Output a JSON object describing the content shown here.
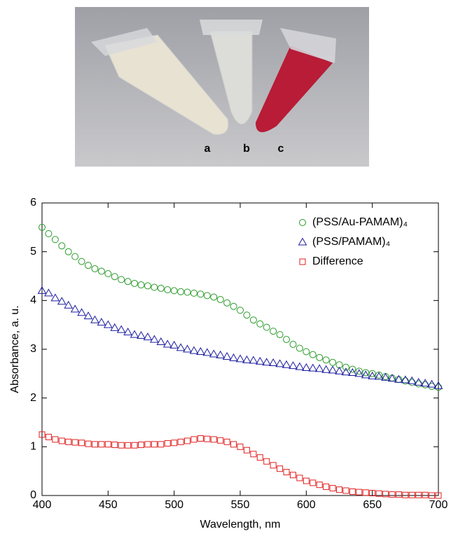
{
  "photo": {
    "labels": [
      "a",
      "b",
      "c"
    ]
  },
  "chart_data": {
    "type": "scatter",
    "x_label": "Wavelength, nm",
    "y_label": "Absorbance, a. u.",
    "xlim": [
      400,
      700
    ],
    "ylim": [
      0,
      6
    ],
    "xticks": [
      400,
      450,
      500,
      550,
      600,
      650,
      700
    ],
    "yticks": [
      0,
      1,
      2,
      3,
      4,
      5,
      6
    ],
    "legend": "upper right",
    "x": [
      400,
      405,
      410,
      415,
      420,
      425,
      430,
      435,
      440,
      445,
      450,
      455,
      460,
      465,
      470,
      475,
      480,
      485,
      490,
      495,
      500,
      505,
      510,
      515,
      520,
      525,
      530,
      535,
      540,
      545,
      550,
      555,
      560,
      565,
      570,
      575,
      580,
      585,
      590,
      595,
      600,
      605,
      610,
      615,
      620,
      625,
      630,
      635,
      640,
      645,
      650,
      655,
      660,
      665,
      670,
      675,
      680,
      685,
      690,
      695,
      700
    ],
    "series": [
      {
        "name": "(PSS/Au-PAMAM)₄",
        "color": "#2a9a2a",
        "marker": "circle",
        "values": [
          5.5,
          5.37,
          5.25,
          5.12,
          5.0,
          4.9,
          4.8,
          4.72,
          4.65,
          4.6,
          4.55,
          4.49,
          4.43,
          4.39,
          4.35,
          4.32,
          4.3,
          4.27,
          4.25,
          4.22,
          4.2,
          4.18,
          4.17,
          4.15,
          4.13,
          4.1,
          4.07,
          4.02,
          3.95,
          3.88,
          3.8,
          3.7,
          3.6,
          3.52,
          3.45,
          3.37,
          3.3,
          3.2,
          3.1,
          3.02,
          2.95,
          2.89,
          2.83,
          2.78,
          2.73,
          2.68,
          2.63,
          2.59,
          2.55,
          2.52,
          2.5,
          2.47,
          2.44,
          2.41,
          2.38,
          2.35,
          2.32,
          2.29,
          2.27,
          2.24,
          2.22
        ]
      },
      {
        "name": "(PSS/PAMAM)₄",
        "color": "#1c1ca0",
        "marker": "triangle",
        "values": [
          4.2,
          4.15,
          4.05,
          3.98,
          3.9,
          3.82,
          3.75,
          3.68,
          3.6,
          3.55,
          3.5,
          3.44,
          3.4,
          3.35,
          3.3,
          3.28,
          3.25,
          3.2,
          3.15,
          3.1,
          3.08,
          3.03,
          3.0,
          2.97,
          2.95,
          2.93,
          2.9,
          2.88,
          2.85,
          2.82,
          2.8,
          2.78,
          2.77,
          2.75,
          2.73,
          2.72,
          2.7,
          2.68,
          2.66,
          2.64,
          2.62,
          2.61,
          2.6,
          2.58,
          2.57,
          2.55,
          2.53,
          2.52,
          2.5,
          2.47,
          2.45,
          2.44,
          2.42,
          2.4,
          2.38,
          2.37,
          2.35,
          2.32,
          2.3,
          2.28,
          2.25
        ]
      },
      {
        "name": "Difference",
        "color": "#e02020",
        "marker": "square",
        "values": [
          1.25,
          1.2,
          1.15,
          1.12,
          1.1,
          1.09,
          1.08,
          1.06,
          1.05,
          1.05,
          1.05,
          1.04,
          1.03,
          1.03,
          1.03,
          1.04,
          1.05,
          1.05,
          1.05,
          1.07,
          1.08,
          1.1,
          1.12,
          1.15,
          1.17,
          1.16,
          1.15,
          1.13,
          1.1,
          1.05,
          1.0,
          0.93,
          0.85,
          0.78,
          0.7,
          0.62,
          0.55,
          0.48,
          0.42,
          0.36,
          0.3,
          0.26,
          0.22,
          0.18,
          0.15,
          0.12,
          0.1,
          0.08,
          0.07,
          0.06,
          0.05,
          0.04,
          0.03,
          0.02,
          0.02,
          0.01,
          0.01,
          0.01,
          0.01,
          0.0,
          0.0
        ]
      }
    ]
  }
}
